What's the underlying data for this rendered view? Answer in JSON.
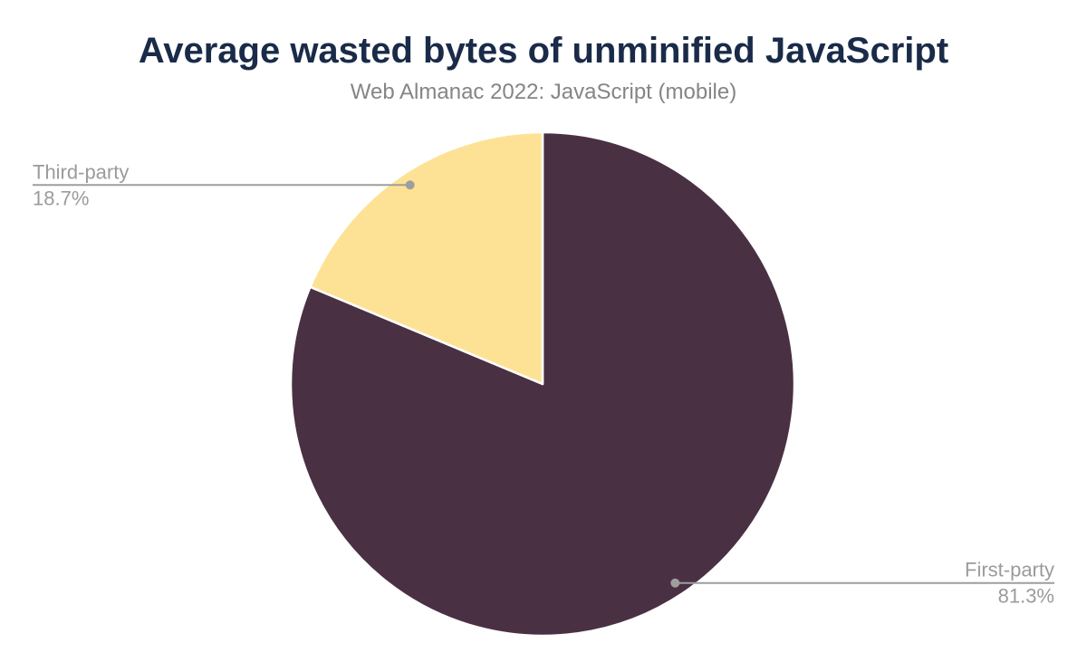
{
  "chart_data": {
    "type": "pie",
    "title": "Average wasted bytes of unminified JavaScript",
    "subtitle": "Web Almanac 2022: JavaScript (mobile)",
    "start_angle_deg": 0,
    "direction": "clockwise",
    "legend_position": "none",
    "slices": [
      {
        "label": "First-party",
        "value": 81.3,
        "pct_label": "81.3%",
        "color": "#4a3043",
        "label_side": "right"
      },
      {
        "label": "Third-party",
        "value": 18.7,
        "pct_label": "18.7%",
        "color": "#fde296",
        "label_side": "left"
      }
    ],
    "colors": {
      "title": "#1a2b49",
      "subtitle": "#858585",
      "label_text": "#9b9b9b",
      "connector": "#9e9e9e",
      "slice_border": "#ffffff",
      "background": "#ffffff"
    }
  }
}
